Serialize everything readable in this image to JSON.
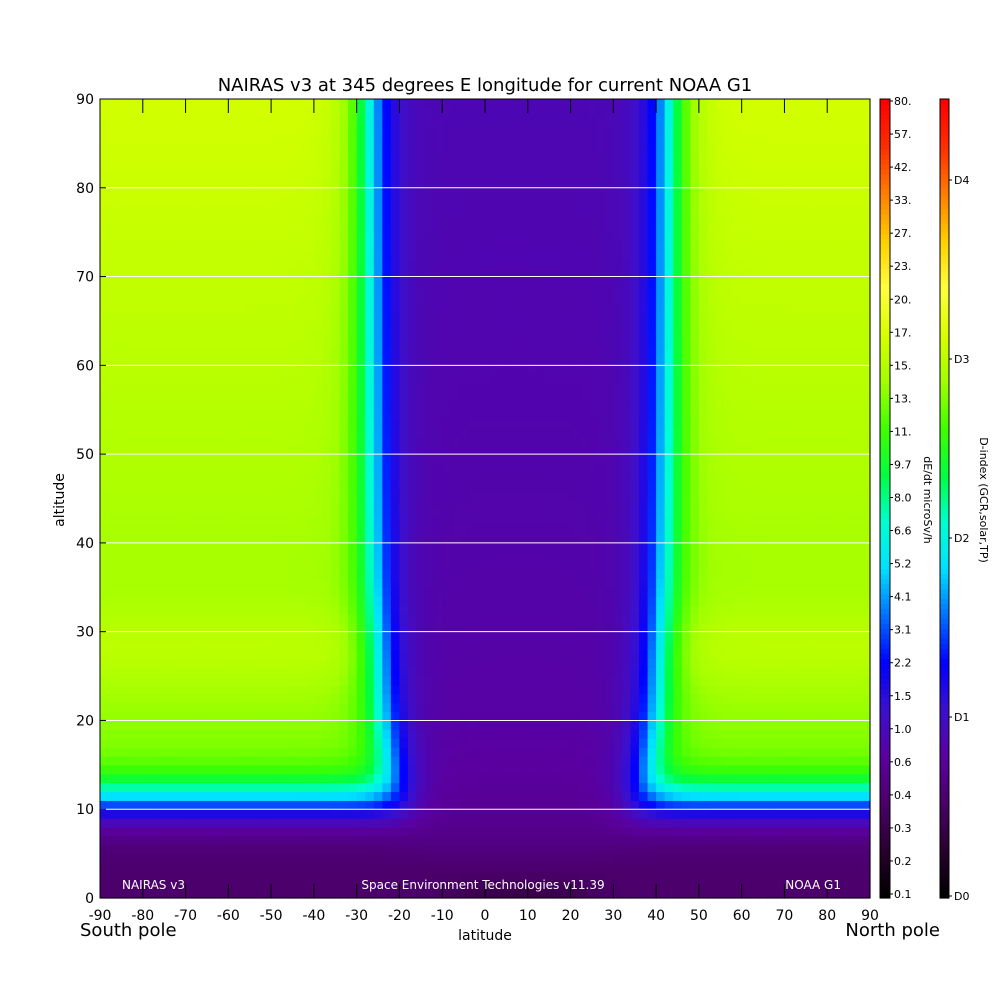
{
  "chart_data": {
    "type": "heatmap",
    "title": "NAIRAS v3 at 345 degrees E longitude for current NOAA G1",
    "xlabel": "latitude",
    "ylabel": "altitude",
    "xlim": [
      -90,
      90
    ],
    "ylim": [
      0,
      90
    ],
    "x_ticks": [
      "-90",
      "-80",
      "-70",
      "-60",
      "-50",
      "-40",
      "-30",
      "-20",
      "-10",
      "0",
      "10",
      "20",
      "30",
      "40",
      "50",
      "60",
      "70",
      "80",
      "90"
    ],
    "y_ticks": [
      "0",
      "10",
      "20",
      "30",
      "40",
      "50",
      "60",
      "70",
      "80",
      "90"
    ],
    "grid": "horizontal lines every 10",
    "pole_labels": {
      "left": "South pole",
      "right": "North pole"
    },
    "annotations": {
      "bottom_left": "NAIRAS v3",
      "bottom_center": "Space Environment Technologies v11.39",
      "bottom_right": "NOAA G1"
    },
    "colorbar_dose": {
      "label": "dE/dt microSv/h",
      "ticks": [
        "0.1",
        "0.2",
        "0.3",
        "0.4",
        "0.6",
        "1.0",
        "1.5",
        "2.2",
        "3.1",
        "4.1",
        "5.2",
        "6.6",
        "8.0",
        "9.7",
        "11.",
        "13.",
        "15.",
        "17.",
        "20.",
        "23.",
        "27.",
        "33.",
        "42.",
        "57.",
        "80."
      ]
    },
    "colorbar_dindex": {
      "label": "D-index (GCR,solar,TP)",
      "ticks": [
        "D0",
        "D1",
        "D2",
        "D3",
        "D4"
      ]
    },
    "field_description": "Dose rate roughly symmetric about ~8° latitude; minimum near equator at 0–10 km, rising toward poles and with altitude; cutoff band near ±40–45° latitude above 15 km"
  },
  "colormap": [
    "#000000",
    "#2a0030",
    "#4a0068",
    "#5a00a0",
    "#3a10d0",
    "#0000ff",
    "#0070ff",
    "#00e0ff",
    "#00ffd0",
    "#00ff40",
    "#40ff00",
    "#a0ff00",
    "#d8ff00",
    "#ffff40",
    "#ffd000",
    "#ff8000",
    "#ff3000",
    "#ff0000"
  ]
}
